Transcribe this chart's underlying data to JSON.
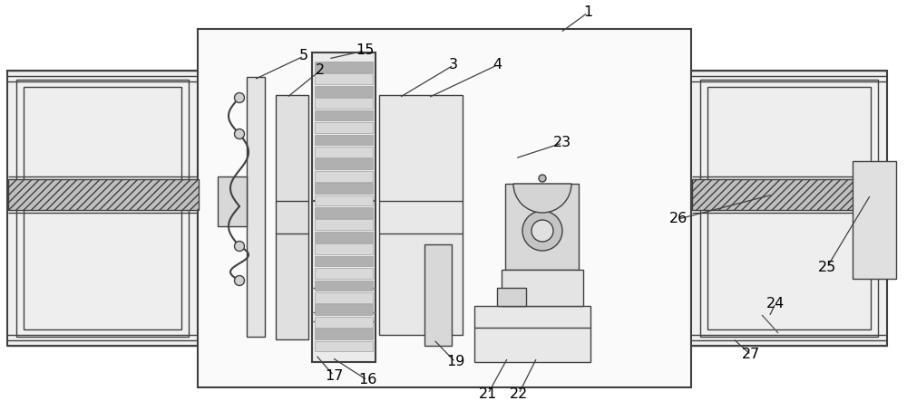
{
  "bg_color": "#ffffff",
  "line_color": "#404040",
  "figsize": [
    10.0,
    4.53
  ],
  "dpi": 100,
  "label_fontsize": 11.5
}
